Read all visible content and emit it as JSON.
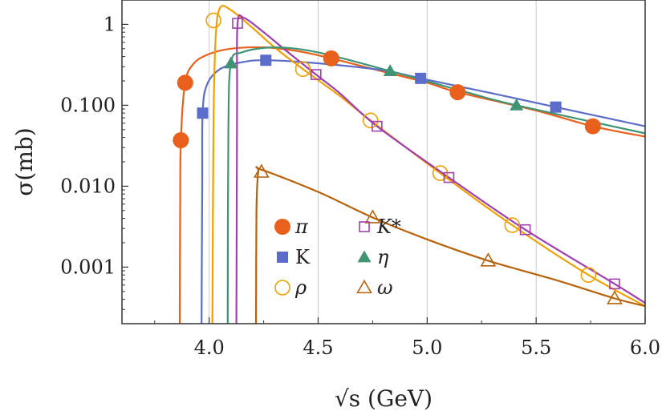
{
  "chart_data": {
    "type": "scatter",
    "x_title": "√s (GeV)",
    "y_title": "σ(mb)",
    "xlim": [
      3.6,
      6.0
    ],
    "ylim": [
      0.0002,
      2.0
    ],
    "y_scale": "log",
    "grid": "vertical",
    "legend_placement": "center-left",
    "x_ticks": [
      {
        "value": 4.0,
        "label": "4.0"
      },
      {
        "value": 4.5,
        "label": "4.5"
      },
      {
        "value": 5.0,
        "label": "5.0"
      },
      {
        "value": 5.5,
        "label": "5.5"
      },
      {
        "value": 6.0,
        "label": "6.0"
      }
    ],
    "y_ticks": [
      {
        "value": 1,
        "label": "1"
      },
      {
        "value": 0.1,
        "label": "0.100"
      },
      {
        "value": 0.01,
        "label": "0.010"
      },
      {
        "value": 0.001,
        "label": "0.001"
      }
    ],
    "series": [
      {
        "name": "π",
        "color": "#E8601C",
        "marker": "circle-filled",
        "points": [
          [
            3.87,
            0.037
          ],
          [
            3.89,
            0.19
          ],
          [
            4.56,
            0.38
          ],
          [
            5.14,
            0.145
          ],
          [
            5.76,
            0.055
          ]
        ],
        "curve": [
          [
            3.865,
            0.0002
          ],
          [
            3.867,
            0.005
          ],
          [
            3.87,
            0.037
          ],
          [
            3.89,
            0.19
          ],
          [
            3.93,
            0.33
          ],
          [
            4.0,
            0.43
          ],
          [
            4.1,
            0.5
          ],
          [
            4.25,
            0.52
          ],
          [
            4.4,
            0.47
          ],
          [
            4.56,
            0.38
          ],
          [
            4.8,
            0.26
          ],
          [
            5.0,
            0.19
          ],
          [
            5.14,
            0.145
          ],
          [
            5.5,
            0.086
          ],
          [
            5.76,
            0.055
          ],
          [
            6.0,
            0.041
          ]
        ]
      },
      {
        "name": "K",
        "color": "#5B6DC8",
        "marker": "square-filled",
        "points": [
          [
            3.97,
            0.08
          ],
          [
            4.26,
            0.36
          ],
          [
            4.97,
            0.215
          ],
          [
            5.59,
            0.095
          ]
        ],
        "curve": [
          [
            3.965,
            0.0002
          ],
          [
            3.968,
            0.01
          ],
          [
            3.97,
            0.08
          ],
          [
            3.99,
            0.18
          ],
          [
            4.05,
            0.28
          ],
          [
            4.15,
            0.34
          ],
          [
            4.26,
            0.36
          ],
          [
            4.5,
            0.33
          ],
          [
            4.8,
            0.27
          ],
          [
            4.97,
            0.215
          ],
          [
            5.3,
            0.14
          ],
          [
            5.59,
            0.095
          ],
          [
            6.0,
            0.055
          ]
        ]
      },
      {
        "name": "ρ",
        "color": "#F0A000",
        "marker": "circle-open",
        "points": [
          [
            4.02,
            1.12
          ],
          [
            4.43,
            0.28
          ],
          [
            4.74,
            0.065
          ],
          [
            5.06,
            0.0145
          ],
          [
            5.39,
            0.0033
          ],
          [
            5.74,
            0.0008
          ]
        ],
        "curve": [
          [
            4.015,
            0.0002
          ],
          [
            4.02,
            0.06
          ],
          [
            4.03,
            0.7
          ],
          [
            4.05,
            1.6
          ],
          [
            4.1,
            1.5
          ],
          [
            4.2,
            0.9
          ],
          [
            4.3,
            0.52
          ],
          [
            4.43,
            0.28
          ],
          [
            4.6,
            0.13
          ],
          [
            4.74,
            0.065
          ],
          [
            5.06,
            0.0145
          ],
          [
            5.39,
            0.0033
          ],
          [
            5.74,
            0.0008
          ],
          [
            6.0,
            0.00033
          ]
        ]
      },
      {
        "name": "K*",
        "color": "#A040B0",
        "marker": "square-open",
        "points": [
          [
            4.13,
            1.03
          ],
          [
            4.49,
            0.24
          ],
          [
            4.77,
            0.055
          ],
          [
            5.1,
            0.0128
          ],
          [
            5.45,
            0.0029
          ],
          [
            5.86,
            0.00062
          ]
        ],
        "curve": [
          [
            4.125,
            0.0002
          ],
          [
            4.128,
            0.1
          ],
          [
            4.13,
            1.0
          ],
          [
            4.16,
            1.2
          ],
          [
            4.25,
            0.8
          ],
          [
            4.35,
            0.48
          ],
          [
            4.49,
            0.24
          ],
          [
            4.6,
            0.14
          ],
          [
            4.77,
            0.055
          ],
          [
            5.1,
            0.0128
          ],
          [
            5.45,
            0.0029
          ],
          [
            5.86,
            0.00062
          ],
          [
            6.0,
            0.00036
          ]
        ]
      },
      {
        "name": "η",
        "color": "#3F9473",
        "marker": "triangle-filled",
        "points": [
          [
            4.1,
            0.33
          ],
          [
            4.83,
            0.265
          ],
          [
            5.41,
            0.1
          ]
        ],
        "curve": [
          [
            4.085,
            0.0002
          ],
          [
            4.088,
            0.05
          ],
          [
            4.1,
            0.33
          ],
          [
            4.15,
            0.45
          ],
          [
            4.3,
            0.52
          ],
          [
            4.5,
            0.45
          ],
          [
            4.83,
            0.265
          ],
          [
            5.2,
            0.14
          ],
          [
            5.41,
            0.1
          ],
          [
            6.0,
            0.045
          ]
        ]
      },
      {
        "name": "ω",
        "color": "#B8620A",
        "marker": "triangle-open",
        "points": [
          [
            4.24,
            0.015
          ],
          [
            4.75,
            0.0041
          ],
          [
            5.28,
            0.0012
          ],
          [
            5.86,
            0.00041
          ]
        ],
        "curve": [
          [
            4.215,
            0.0002
          ],
          [
            4.217,
            0.005
          ],
          [
            4.225,
            0.015
          ],
          [
            4.24,
            0.016
          ],
          [
            4.5,
            0.0085
          ],
          [
            4.75,
            0.0041
          ],
          [
            5.0,
            0.0022
          ],
          [
            5.28,
            0.0012
          ],
          [
            5.6,
            0.00068
          ],
          [
            5.86,
            0.00041
          ],
          [
            6.0,
            0.00033
          ]
        ]
      }
    ],
    "legend": [
      {
        "series": 0,
        "label": "π",
        "style": "italic"
      },
      {
        "series": 3,
        "label": "K*",
        "style": "italic"
      },
      {
        "series": 1,
        "label": "K",
        "style": "upright"
      },
      {
        "series": 4,
        "label": "η",
        "style": "italic"
      },
      {
        "series": 2,
        "label": "ρ",
        "style": "italic"
      },
      {
        "series": 5,
        "label": "ω",
        "style": "italic"
      }
    ]
  }
}
